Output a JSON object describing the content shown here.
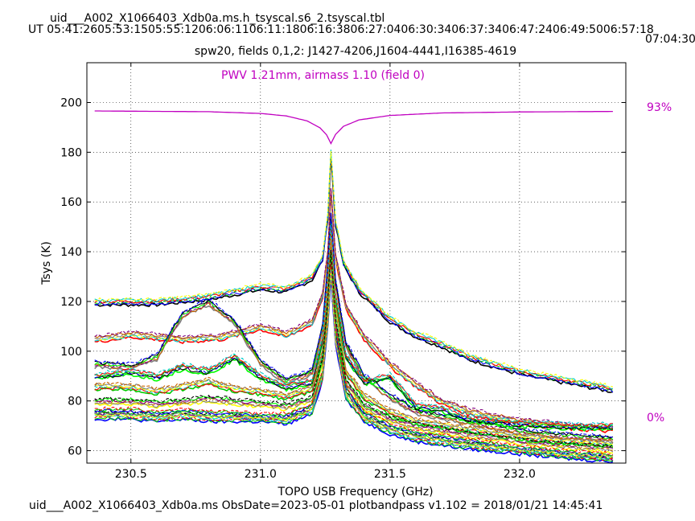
{
  "header": {
    "title": "uid___A002_X1066403_Xdb0a.ms.h_tsyscal.s6_2.tsyscal.tbl",
    "ut_line": "UT 05:41:2605:53:1505:55:1206:06:1106:11:1806:16:3806:27:0406:30:3406:37:3406:47:2406:49:5006:57:18",
    "ut_overflow": "07:04:30",
    "subtitle": "spw20,  fields 0,1,2: J1427-4206,J1604-4441,I16385-4619"
  },
  "footer": {
    "text": "uid___A002_X1066403_Xdb0a.ms  ObsDate=2023-05-01   plotbandpass v1.102 = 2018/01/21 14:45:41"
  },
  "colors": {
    "atm": "#c000c0",
    "series_palette": [
      "#000000",
      "#0000ff",
      "#00cc00",
      "#ff0000",
      "#00cccc",
      "#ffff00",
      "#7f7f7f",
      "#cc6600",
      "#800080",
      "#00ff00"
    ]
  },
  "chart_data": {
    "type": "line",
    "xlabel": "TOPO USB Frequency (GHz)",
    "ylabel": "Tsys (K)",
    "xlim": [
      230.33,
      232.41
    ],
    "ylim": [
      55,
      216
    ],
    "xticks": [
      230.5,
      231.0,
      231.5,
      232.0
    ],
    "xtick_labels": [
      "230.5",
      "231.0",
      "231.5",
      "232.0"
    ],
    "yticks": [
      60,
      80,
      100,
      120,
      140,
      160,
      180,
      200
    ],
    "ytick_labels": [
      "60",
      "80",
      "100",
      "120",
      "140",
      "160",
      "180",
      "200"
    ],
    "grid": true,
    "annotation": "PWV 1.21mm, airmass 1.10 (field 0)",
    "atm_transmission": {
      "top_label": "93%",
      "bottom_label": "0%",
      "points": [
        [
          230.36,
          196.6
        ],
        [
          230.8,
          196.3
        ],
        [
          231.0,
          195.6
        ],
        [
          231.1,
          194.6
        ],
        [
          231.18,
          192.6
        ],
        [
          231.23,
          189.8
        ],
        [
          231.255,
          187.0
        ],
        [
          231.272,
          183.5
        ],
        [
          231.29,
          187.2
        ],
        [
          231.32,
          190.4
        ],
        [
          231.38,
          193.0
        ],
        [
          231.5,
          194.8
        ],
        [
          231.7,
          195.8
        ],
        [
          232.0,
          196.2
        ],
        [
          232.36,
          196.4
        ]
      ]
    },
    "series": [
      {
        "values": [
          [
            230.36,
            120
          ],
          [
            230.6,
            120
          ],
          [
            230.8,
            122
          ],
          [
            231.0,
            126
          ],
          [
            231.1,
            125
          ],
          [
            231.2,
            130
          ],
          [
            231.24,
            138
          ],
          [
            231.26,
            155
          ],
          [
            231.272,
            180
          ],
          [
            231.29,
            152
          ],
          [
            231.32,
            136
          ],
          [
            231.38,
            125
          ],
          [
            231.5,
            113
          ],
          [
            231.6,
            107
          ],
          [
            231.7,
            103
          ],
          [
            231.8,
            98
          ],
          [
            232.0,
            92
          ],
          [
            232.1,
            90
          ],
          [
            232.2,
            88
          ],
          [
            232.36,
            85
          ]
        ]
      },
      {
        "values": [
          [
            230.36,
            105
          ],
          [
            230.5,
            107
          ],
          [
            230.6,
            106
          ],
          [
            230.7,
            105
          ],
          [
            230.85,
            106
          ],
          [
            231.0,
            110
          ],
          [
            231.1,
            107
          ],
          [
            231.2,
            112
          ],
          [
            231.24,
            123
          ],
          [
            231.26,
            140
          ],
          [
            231.272,
            165
          ],
          [
            231.29,
            138
          ],
          [
            231.33,
            118
          ],
          [
            231.4,
            106
          ],
          [
            231.5,
            95
          ],
          [
            231.6,
            87
          ],
          [
            231.7,
            80
          ],
          [
            231.8,
            76
          ],
          [
            232.0,
            72
          ],
          [
            232.2,
            70
          ],
          [
            232.36,
            69
          ]
        ]
      },
      {
        "values": [
          [
            230.36,
            95
          ],
          [
            230.5,
            94
          ],
          [
            230.6,
            98
          ],
          [
            230.7,
            115
          ],
          [
            230.8,
            120
          ],
          [
            230.9,
            112
          ],
          [
            231.0,
            96
          ],
          [
            231.1,
            88
          ],
          [
            231.2,
            92
          ],
          [
            231.24,
            110
          ],
          [
            231.26,
            135
          ],
          [
            231.272,
            155
          ],
          [
            231.29,
            128
          ],
          [
            231.33,
            103
          ],
          [
            231.4,
            90
          ],
          [
            231.5,
            82
          ],
          [
            231.6,
            76
          ],
          [
            231.8,
            72
          ],
          [
            232.0,
            68
          ],
          [
            232.2,
            66
          ],
          [
            232.36,
            65
          ]
        ]
      },
      {
        "values": [
          [
            230.36,
            90
          ],
          [
            230.5,
            92
          ],
          [
            230.6,
            90
          ],
          [
            230.7,
            94
          ],
          [
            230.8,
            92
          ],
          [
            230.9,
            98
          ],
          [
            231.0,
            90
          ],
          [
            231.1,
            86
          ],
          [
            231.2,
            88
          ],
          [
            231.24,
            105
          ],
          [
            231.26,
            130
          ],
          [
            231.272,
            150
          ],
          [
            231.29,
            122
          ],
          [
            231.33,
            98
          ],
          [
            231.4,
            88
          ],
          [
            231.5,
            90
          ],
          [
            231.55,
            84
          ],
          [
            231.6,
            78
          ],
          [
            231.7,
            77
          ],
          [
            231.8,
            73
          ],
          [
            232.0,
            71
          ],
          [
            232.2,
            70
          ],
          [
            232.36,
            70
          ]
        ]
      },
      {
        "values": [
          [
            230.36,
            86
          ],
          [
            230.5,
            86
          ],
          [
            230.6,
            84
          ],
          [
            230.7,
            86
          ],
          [
            230.8,
            88
          ],
          [
            230.9,
            85
          ],
          [
            231.0,
            84
          ],
          [
            231.1,
            82
          ],
          [
            231.2,
            85
          ],
          [
            231.24,
            100
          ],
          [
            231.26,
            125
          ],
          [
            231.272,
            145
          ],
          [
            231.29,
            118
          ],
          [
            231.33,
            92
          ],
          [
            231.4,
            82
          ],
          [
            231.5,
            76
          ],
          [
            231.6,
            72
          ],
          [
            231.8,
            69
          ],
          [
            232.0,
            66
          ],
          [
            232.2,
            64
          ],
          [
            232.36,
            63
          ]
        ]
      },
      {
        "values": [
          [
            230.36,
            80
          ],
          [
            230.5,
            80
          ],
          [
            230.6,
            79
          ],
          [
            230.7,
            80
          ],
          [
            230.8,
            81
          ],
          [
            230.9,
            80
          ],
          [
            231.0,
            79
          ],
          [
            231.1,
            78
          ],
          [
            231.2,
            81
          ],
          [
            231.24,
            96
          ],
          [
            231.26,
            120
          ],
          [
            231.272,
            140
          ],
          [
            231.29,
            112
          ],
          [
            231.33,
            88
          ],
          [
            231.4,
            78
          ],
          [
            231.5,
            73
          ],
          [
            231.6,
            70
          ],
          [
            231.8,
            67
          ],
          [
            232.0,
            64
          ],
          [
            232.2,
            62
          ],
          [
            232.36,
            61
          ]
        ]
      },
      {
        "values": [
          [
            230.36,
            76
          ],
          [
            230.5,
            76
          ],
          [
            230.6,
            75
          ],
          [
            230.7,
            76
          ],
          [
            230.8,
            75
          ],
          [
            230.9,
            75
          ],
          [
            231.0,
            74
          ],
          [
            231.1,
            74
          ],
          [
            231.2,
            78
          ],
          [
            231.24,
            92
          ],
          [
            231.26,
            115
          ],
          [
            231.272,
            135
          ],
          [
            231.29,
            108
          ],
          [
            231.33,
            85
          ],
          [
            231.4,
            75
          ],
          [
            231.5,
            70
          ],
          [
            231.6,
            67
          ],
          [
            231.8,
            64
          ],
          [
            232.0,
            61
          ],
          [
            232.2,
            59
          ],
          [
            232.36,
            58
          ]
        ]
      },
      {
        "values": [
          [
            230.36,
            74
          ],
          [
            230.5,
            74
          ],
          [
            230.6,
            73
          ],
          [
            230.7,
            74
          ],
          [
            230.8,
            73
          ],
          [
            230.9,
            73
          ],
          [
            231.0,
            73
          ],
          [
            231.1,
            72
          ],
          [
            231.2,
            76
          ],
          [
            231.24,
            90
          ],
          [
            231.26,
            112
          ],
          [
            231.272,
            132
          ],
          [
            231.29,
            104
          ],
          [
            231.33,
            82
          ],
          [
            231.4,
            73
          ],
          [
            231.5,
            68
          ],
          [
            231.6,
            65
          ],
          [
            231.8,
            62
          ],
          [
            232.0,
            60
          ],
          [
            232.2,
            58
          ],
          [
            232.36,
            57
          ]
        ]
      }
    ]
  }
}
